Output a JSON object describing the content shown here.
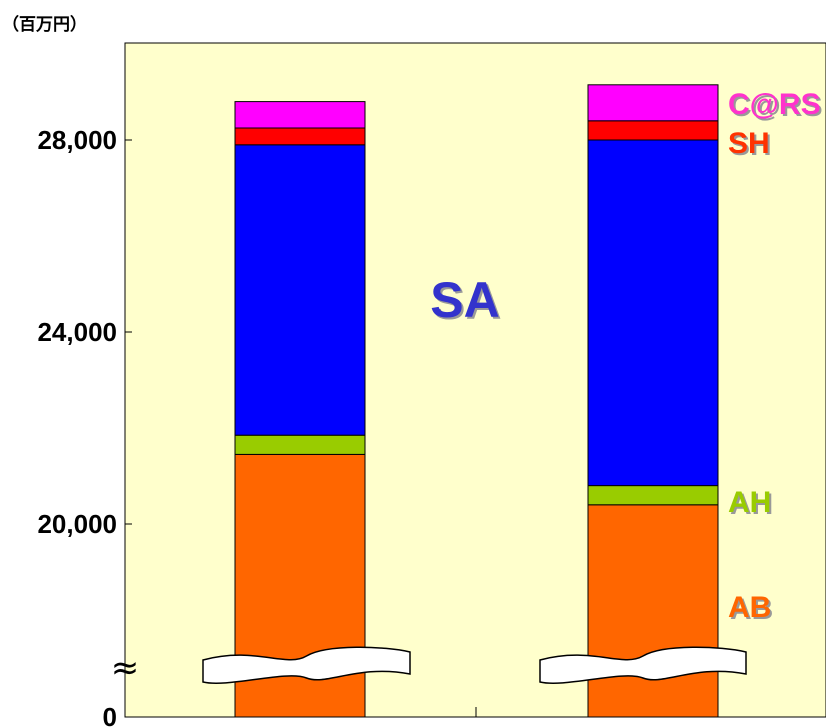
{
  "chart_data": {
    "type": "bar",
    "stacked": true,
    "unit_label": "（百万円）",
    "yticks": [
      {
        "value": 0,
        "label": "0"
      },
      {
        "value": 20000,
        "label": "20,000"
      },
      {
        "value": 24000,
        "label": "24,000"
      },
      {
        "value": 28000,
        "label": "28,000"
      }
    ],
    "axis_break": true,
    "axis_break_symbol": "≈",
    "ylim": [
      0,
      30000
    ],
    "plot_background": "#ffffcc",
    "bar_count": 2,
    "series": [
      {
        "name": "AB",
        "color": "#ff6600",
        "values": [
          21450,
          20400
        ]
      },
      {
        "name": "AH",
        "color": "#99cc00",
        "values": [
          400,
          400
        ]
      },
      {
        "name": "SA",
        "color": "#0000ff",
        "values": [
          6050,
          7200
        ]
      },
      {
        "name": "SH",
        "color": "#ff0000",
        "values": [
          350,
          400
        ]
      },
      {
        "name": "C@RS",
        "color": "#ff00ff",
        "values": [
          550,
          750
        ]
      }
    ],
    "label_colors": {
      "AB": "#ff6600",
      "AH": "#99cc00",
      "SA": "#3333cc",
      "SH": "#ff3300",
      "C@RS": "#ff33cc"
    }
  }
}
